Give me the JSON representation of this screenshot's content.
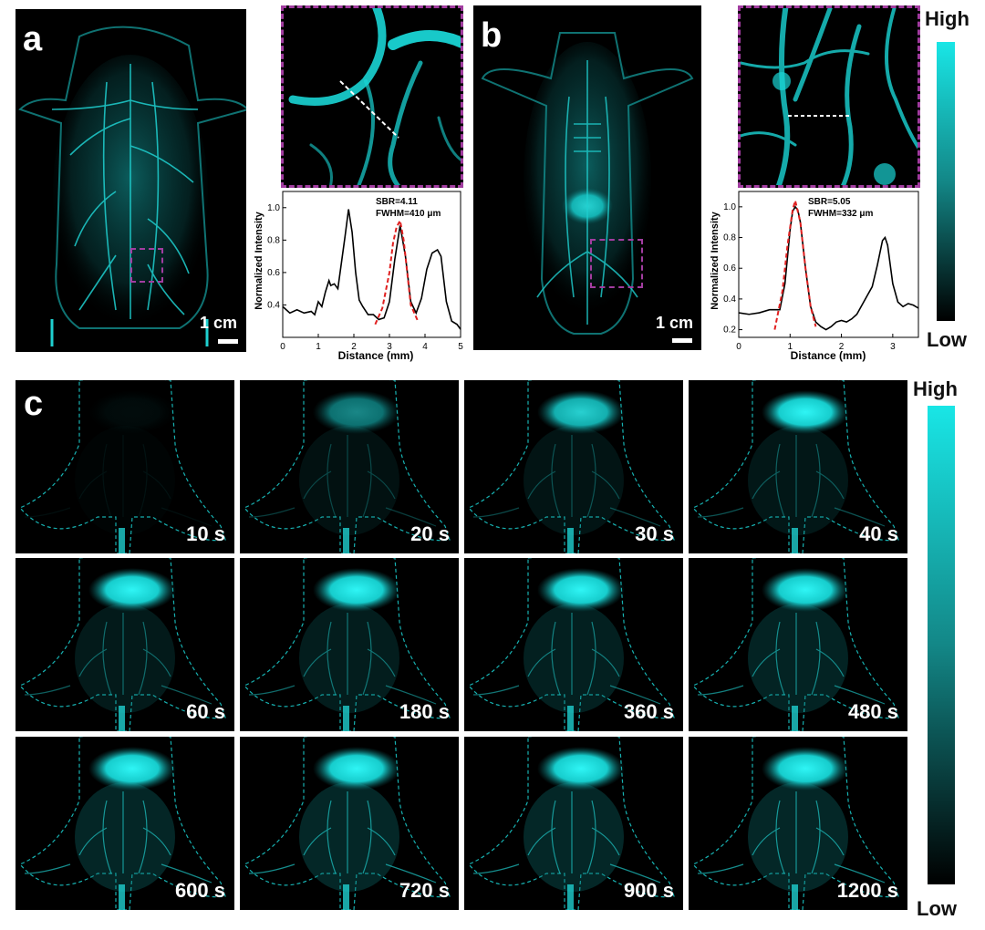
{
  "panels": {
    "a": {
      "letter": "a",
      "scale_label": "1 cm"
    },
    "b": {
      "letter": "b",
      "scale_label": "1 cm"
    },
    "c": {
      "letter": "c"
    }
  },
  "colorbar_top": {
    "high": "High",
    "low": "Low"
  },
  "colorbar_bottom": {
    "high": "High",
    "low": "Low"
  },
  "colors": {
    "cyan": "#19e3e3",
    "dash_frame": "#a23da0",
    "fit": "#e02020"
  },
  "time_frames": [
    "10 s",
    "20 s",
    "30 s",
    "40 s",
    "60 s",
    "180 s",
    "360 s",
    "480 s",
    "600 s",
    "720 s",
    "900 s",
    "1200 s"
  ],
  "chart_data": [
    {
      "type": "line",
      "xlabel": "Distance (mm)",
      "ylabel": "Normalized Intensity",
      "xlim": [
        0,
        5
      ],
      "ylim": [
        0.2,
        1.1
      ],
      "xticks": [
        0,
        1,
        2,
        3,
        4,
        5
      ],
      "yticks": [
        0.4,
        0.6,
        0.8,
        1.0
      ],
      "annotations": [
        "SBR=4.11",
        "FWHM=410 μm"
      ],
      "series": [
        {
          "x": [
            0,
            0.2,
            0.4,
            0.6,
            0.8,
            0.9,
            1.0,
            1.1,
            1.2,
            1.3,
            1.35,
            1.45,
            1.55,
            1.65,
            1.75,
            1.85,
            1.95,
            2.05,
            2.15,
            2.25,
            2.4,
            2.55,
            2.7,
            2.85,
            3.0,
            3.15,
            3.3,
            3.45,
            3.6,
            3.75,
            3.9,
            4.05,
            4.2,
            4.35,
            4.45,
            4.6,
            4.75,
            4.9,
            5.0
          ],
          "y": [
            0.39,
            0.35,
            0.37,
            0.35,
            0.36,
            0.34,
            0.42,
            0.39,
            0.48,
            0.55,
            0.52,
            0.53,
            0.5,
            0.66,
            0.82,
            0.99,
            0.85,
            0.6,
            0.43,
            0.39,
            0.34,
            0.34,
            0.31,
            0.32,
            0.42,
            0.68,
            0.89,
            0.7,
            0.42,
            0.35,
            0.44,
            0.62,
            0.72,
            0.74,
            0.7,
            0.42,
            0.3,
            0.28,
            0.25
          ]
        },
        {
          "x": [
            2.6,
            2.8,
            3.0,
            3.1,
            3.2,
            3.3,
            3.4,
            3.5,
            3.6,
            3.8
          ],
          "y": [
            0.28,
            0.38,
            0.6,
            0.78,
            0.88,
            0.92,
            0.8,
            0.6,
            0.4,
            0.3
          ]
        }
      ]
    },
    {
      "type": "line",
      "xlabel": "Distance (mm)",
      "ylabel": "Normalized Intensity",
      "xlim": [
        0,
        3.5
      ],
      "ylim": [
        0.15,
        1.1
      ],
      "xticks": [
        0,
        1,
        2,
        3
      ],
      "yticks": [
        0.2,
        0.4,
        0.6,
        0.8,
        1.0
      ],
      "annotations": [
        "SBR=5.05",
        "FWHM=332 μm"
      ],
      "series": [
        {
          "x": [
            0,
            0.2,
            0.4,
            0.6,
            0.8,
            0.9,
            1.0,
            1.05,
            1.1,
            1.15,
            1.2,
            1.3,
            1.4,
            1.5,
            1.6,
            1.7,
            1.8,
            1.9,
            2.0,
            2.1,
            2.2,
            2.3,
            2.4,
            2.5,
            2.6,
            2.7,
            2.8,
            2.85,
            2.9,
            3.0,
            3.1,
            3.2,
            3.3,
            3.4,
            3.5
          ],
          "y": [
            0.31,
            0.3,
            0.31,
            0.33,
            0.33,
            0.5,
            0.85,
            0.97,
            1.0,
            0.98,
            0.9,
            0.6,
            0.35,
            0.25,
            0.22,
            0.2,
            0.22,
            0.25,
            0.26,
            0.25,
            0.27,
            0.3,
            0.36,
            0.42,
            0.48,
            0.62,
            0.78,
            0.8,
            0.75,
            0.5,
            0.38,
            0.35,
            0.37,
            0.36,
            0.34
          ]
        },
        {
          "x": [
            0.7,
            0.85,
            0.95,
            1.05,
            1.1,
            1.2,
            1.3,
            1.4,
            1.5
          ],
          "y": [
            0.2,
            0.45,
            0.75,
            0.98,
            1.04,
            0.9,
            0.6,
            0.35,
            0.22
          ]
        }
      ]
    }
  ]
}
